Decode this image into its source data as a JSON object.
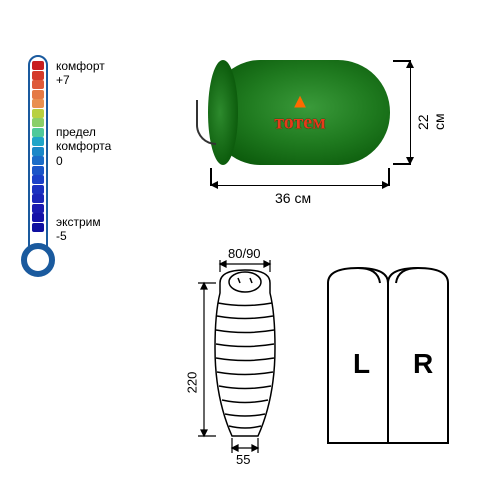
{
  "thermometer": {
    "labels": {
      "comfort": {
        "name": "комфорт",
        "value": "+7"
      },
      "limit": {
        "name": "предел",
        "name2": "комфорта",
        "value": "0"
      },
      "extreme": {
        "name": "экстрим",
        "value": "-5"
      }
    },
    "segments": [
      "#c81e1e",
      "#d43a2a",
      "#de5a3a",
      "#e57a45",
      "#e99050",
      "#b8d040",
      "#8acf68",
      "#4ec99a",
      "#1fa5c8",
      "#1a88c8",
      "#1a6cc8",
      "#1a55c8",
      "#1a40c8",
      "#1a30c0",
      "#1a25b8",
      "#1a1ab0",
      "#1512a8",
      "#1010a0"
    ],
    "tube_border": "#1a5a9e"
  },
  "sack": {
    "width_label": "36 см",
    "height_label": "22 см",
    "brand": "тотем",
    "flame_char": "♨",
    "body_colors": [
      "#3a9a3a",
      "#1f7a1f",
      "#0d5d0d"
    ]
  },
  "mummy": {
    "top_width": "80/90",
    "height": "220",
    "bottom_width": "55",
    "stroke": "#000000",
    "fill": "#ffffff"
  },
  "lr": {
    "left": "L",
    "right": "R",
    "stroke": "#000000"
  }
}
